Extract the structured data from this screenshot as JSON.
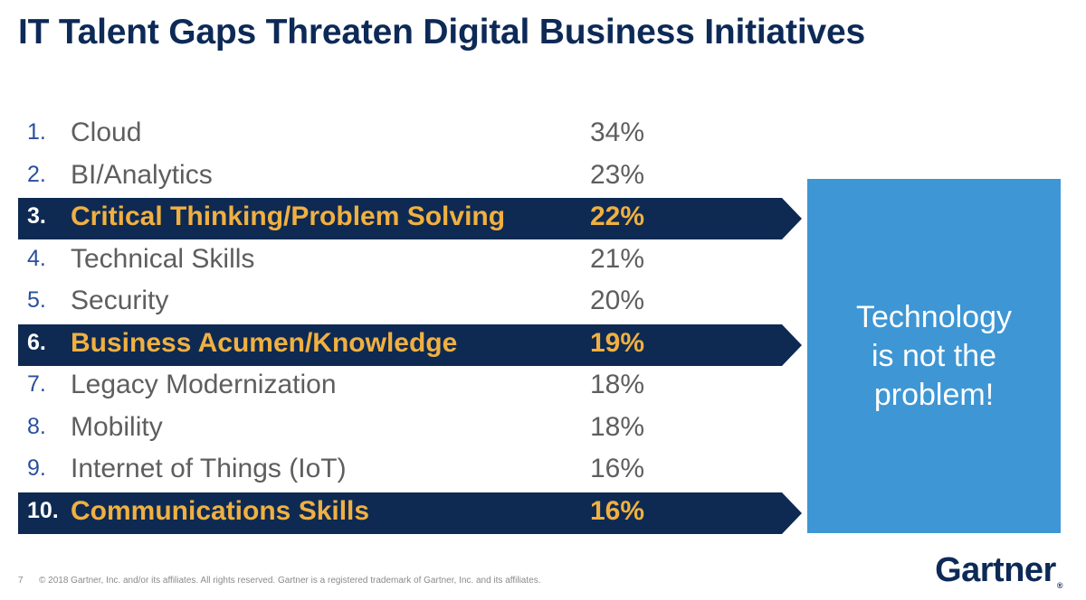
{
  "title": "IT Talent Gaps Threaten Digital Business Initiatives",
  "items": [
    {
      "num": "1.",
      "label": "Cloud",
      "pct": "34%",
      "highlight": false
    },
    {
      "num": "2.",
      "label": "BI/Analytics",
      "pct": "23%",
      "highlight": false
    },
    {
      "num": "3.",
      "label": "Critical Thinking/Problem Solving",
      "pct": "22%",
      "highlight": true
    },
    {
      "num": "4.",
      "label": "Technical Skills",
      "pct": "21%",
      "highlight": false
    },
    {
      "num": "5.",
      "label": "Security",
      "pct": "20%",
      "highlight": false
    },
    {
      "num": "6.",
      "label": "Business Acumen/Knowledge",
      "pct": "19%",
      "highlight": true
    },
    {
      "num": "7.",
      "label": "Legacy Modernization",
      "pct": "18%",
      "highlight": false
    },
    {
      "num": "8.",
      "label": "Mobility",
      "pct": "18%",
      "highlight": false
    },
    {
      "num": "9.",
      "label": "Internet of Things (IoT)",
      "pct": "16%",
      "highlight": false
    },
    {
      "num": "10.",
      "label": "Communications Skills",
      "pct": "16%",
      "highlight": true
    }
  ],
  "callout": {
    "line1": "Technology",
    "line2": "is not the",
    "line3": "problem!"
  },
  "footer": {
    "page": "7",
    "copyright": "© 2018 Gartner, Inc. and/or its affiliates. All rights reserved. Gartner is a registered trademark of Gartner, Inc. and its affiliates."
  },
  "logo": {
    "text": "Gartner",
    "mark": "®"
  },
  "colors": {
    "title": "#0d2a57",
    "highlight_bg": "#0e2a52",
    "highlight_text": "#f0b041",
    "callout_bg": "#3e96d4"
  }
}
